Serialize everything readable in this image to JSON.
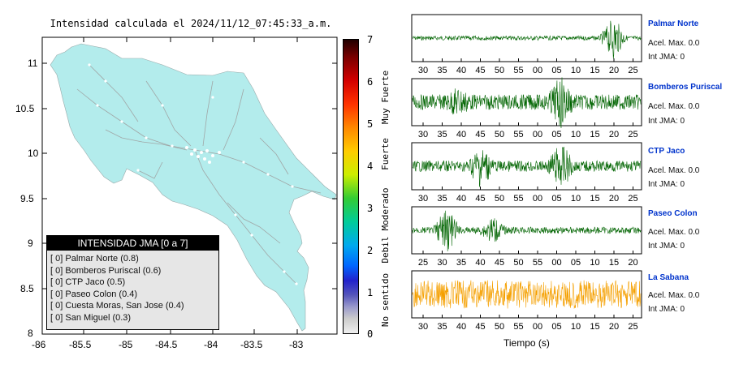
{
  "map": {
    "title": "Intensidad calculada el 2024/11/12_07:45:33_a.m.",
    "land_color": "#b3ecec",
    "xticks": [
      "-86",
      "-85.5",
      "-85",
      "-84.5",
      "-84",
      "-83.5",
      "-83"
    ],
    "yticks": [
      "11",
      "10.5",
      "10",
      "9.5",
      "9",
      "8.5",
      "8"
    ]
  },
  "legend": {
    "header": "INTENSIDAD JMA [0 a 7]",
    "items": [
      {
        "level": "[ 0]",
        "name": "Palmar Norte (0.8)"
      },
      {
        "level": "[ 0]",
        "name": "Bomberos Puriscal (0.6)"
      },
      {
        "level": "[ 0]",
        "name": "CTP Jaco (0.5)"
      },
      {
        "level": "[ 0]",
        "name": "Paseo Colon (0.4)"
      },
      {
        "level": "[ 0]",
        "name": "Cuesta Moras, San Jose (0.4)"
      },
      {
        "level": "[ 0]",
        "name": "San Miguel (0.3)"
      }
    ]
  },
  "colorbar": {
    "ticks": [
      "7",
      "6",
      "5",
      "4",
      "3",
      "2",
      "1",
      "0"
    ],
    "categories": [
      "Muy Fuerte",
      "Fuerte",
      "Moderado",
      "Debil",
      "No sentido"
    ]
  },
  "xlabel": "Tiempo (s)",
  "stations": [
    {
      "name": "Palmar Norte",
      "acel": "Acel. Max. 0.0",
      "int": "Int JMA: 0",
      "color": "#006400",
      "ticks": [
        "30",
        "35",
        "40",
        "45",
        "50",
        "55",
        "00",
        "05",
        "10",
        "15",
        "20",
        "25"
      ]
    },
    {
      "name": "Bomberos Puriscal",
      "acel": "Acel. Max. 0.0",
      "int": "Int JMA: 0",
      "color": "#006400",
      "ticks": [
        "30",
        "35",
        "40",
        "45",
        "50",
        "55",
        "00",
        "05",
        "10",
        "15",
        "20",
        "25"
      ]
    },
    {
      "name": "CTP Jaco",
      "acel": "Acel. Max. 0.0",
      "int": "Int JMA: 0",
      "color": "#006400",
      "ticks": [
        "30",
        "35",
        "40",
        "45",
        "50",
        "55",
        "00",
        "05",
        "10",
        "15",
        "20",
        "25"
      ]
    },
    {
      "name": "Paseo Colon",
      "acel": "Acel. Max. 0.0",
      "int": "Int JMA: 0",
      "color": "#006400",
      "ticks": [
        "25",
        "30",
        "35",
        "40",
        "45",
        "50",
        "55",
        "00",
        "05",
        "10",
        "15",
        "20"
      ]
    },
    {
      "name": "La Sabana",
      "acel": "Acel. Max. 0.0",
      "int": "Int JMA: 0",
      "color": "#f5a000",
      "ticks": [
        "30",
        "35",
        "40",
        "45",
        "50",
        "55",
        "00",
        "05",
        "10",
        "15",
        "20",
        "25"
      ]
    }
  ],
  "chart_data": [
    {
      "type": "scatter",
      "xlim": [
        -86,
        -82.6
      ],
      "ylim": [
        8,
        11.3
      ]
    },
    {
      "type": "line",
      "series": [
        {
          "name": "Palmar Norte",
          "amplitude": 0.1,
          "bursts": [
            [
              19.0,
              0.9
            ]
          ]
        },
        {
          "name": "Bomberos Puriscal",
          "amplitude": 0.35,
          "bursts": [
            [
              0.2,
              0.4
            ],
            [
              0.65,
              0.9
            ]
          ]
        },
        {
          "name": "CTP Jaco",
          "amplitude": 0.25,
          "bursts": [
            [
              0.3,
              0.8
            ],
            [
              0.65,
              0.9
            ]
          ]
        },
        {
          "name": "Paseo Colon",
          "amplitude": 0.15,
          "bursts": [
            [
              0.15,
              0.9
            ],
            [
              0.35,
              0.5
            ]
          ]
        },
        {
          "name": "La Sabana",
          "amplitude": 0.65,
          "bursts": []
        }
      ]
    }
  ]
}
